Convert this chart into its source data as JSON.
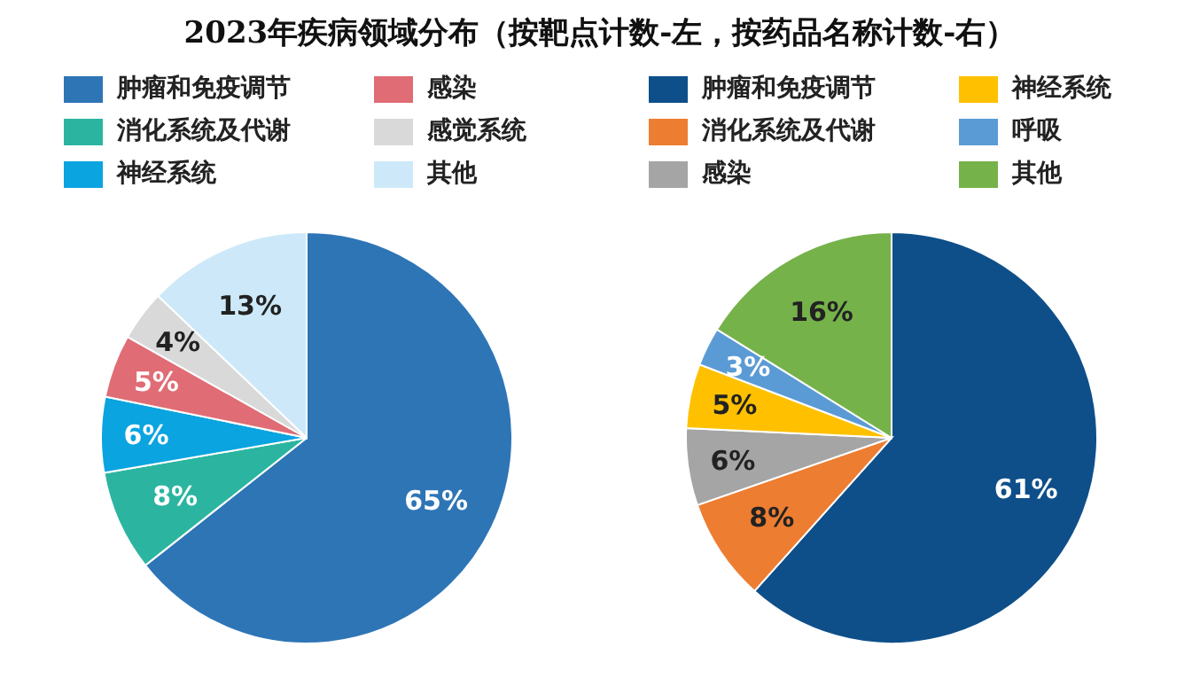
{
  "chart_data": [
    {
      "type": "pie",
      "title": "2023年疾病领域分布（按靶点计数-左，按药品名称计数-右）",
      "categories": [
        "肿瘤和免疫调节",
        "消化系统及代谢",
        "神经系统",
        "感染",
        "感觉系统",
        "其他"
      ],
      "values": [
        65,
        8,
        6,
        5,
        4,
        13
      ],
      "colors": [
        "#2e75b6",
        "#2bb5a0",
        "#0aa4e0",
        "#e06c75",
        "#d9d9d9",
        "#cde9f9"
      ],
      "value_labels": [
        "65%",
        "8%",
        "6%",
        "5%",
        "4%",
        "13%"
      ],
      "legend": "top"
    },
    {
      "type": "pie",
      "categories": [
        "肿瘤和免疫调节",
        "消化系统及代谢",
        "感染",
        "神经系统",
        "呼吸",
        "其他"
      ],
      "values": [
        61,
        8,
        6,
        5,
        3,
        16
      ],
      "colors": [
        "#0e4f8a",
        "#ed7d31",
        "#a5a5a5",
        "#ffc000",
        "#5b9bd5",
        "#76b24a"
      ],
      "value_labels": [
        "61%",
        "8%",
        "6%",
        "5%",
        "3%",
        "16%"
      ],
      "legend": "top"
    }
  ]
}
